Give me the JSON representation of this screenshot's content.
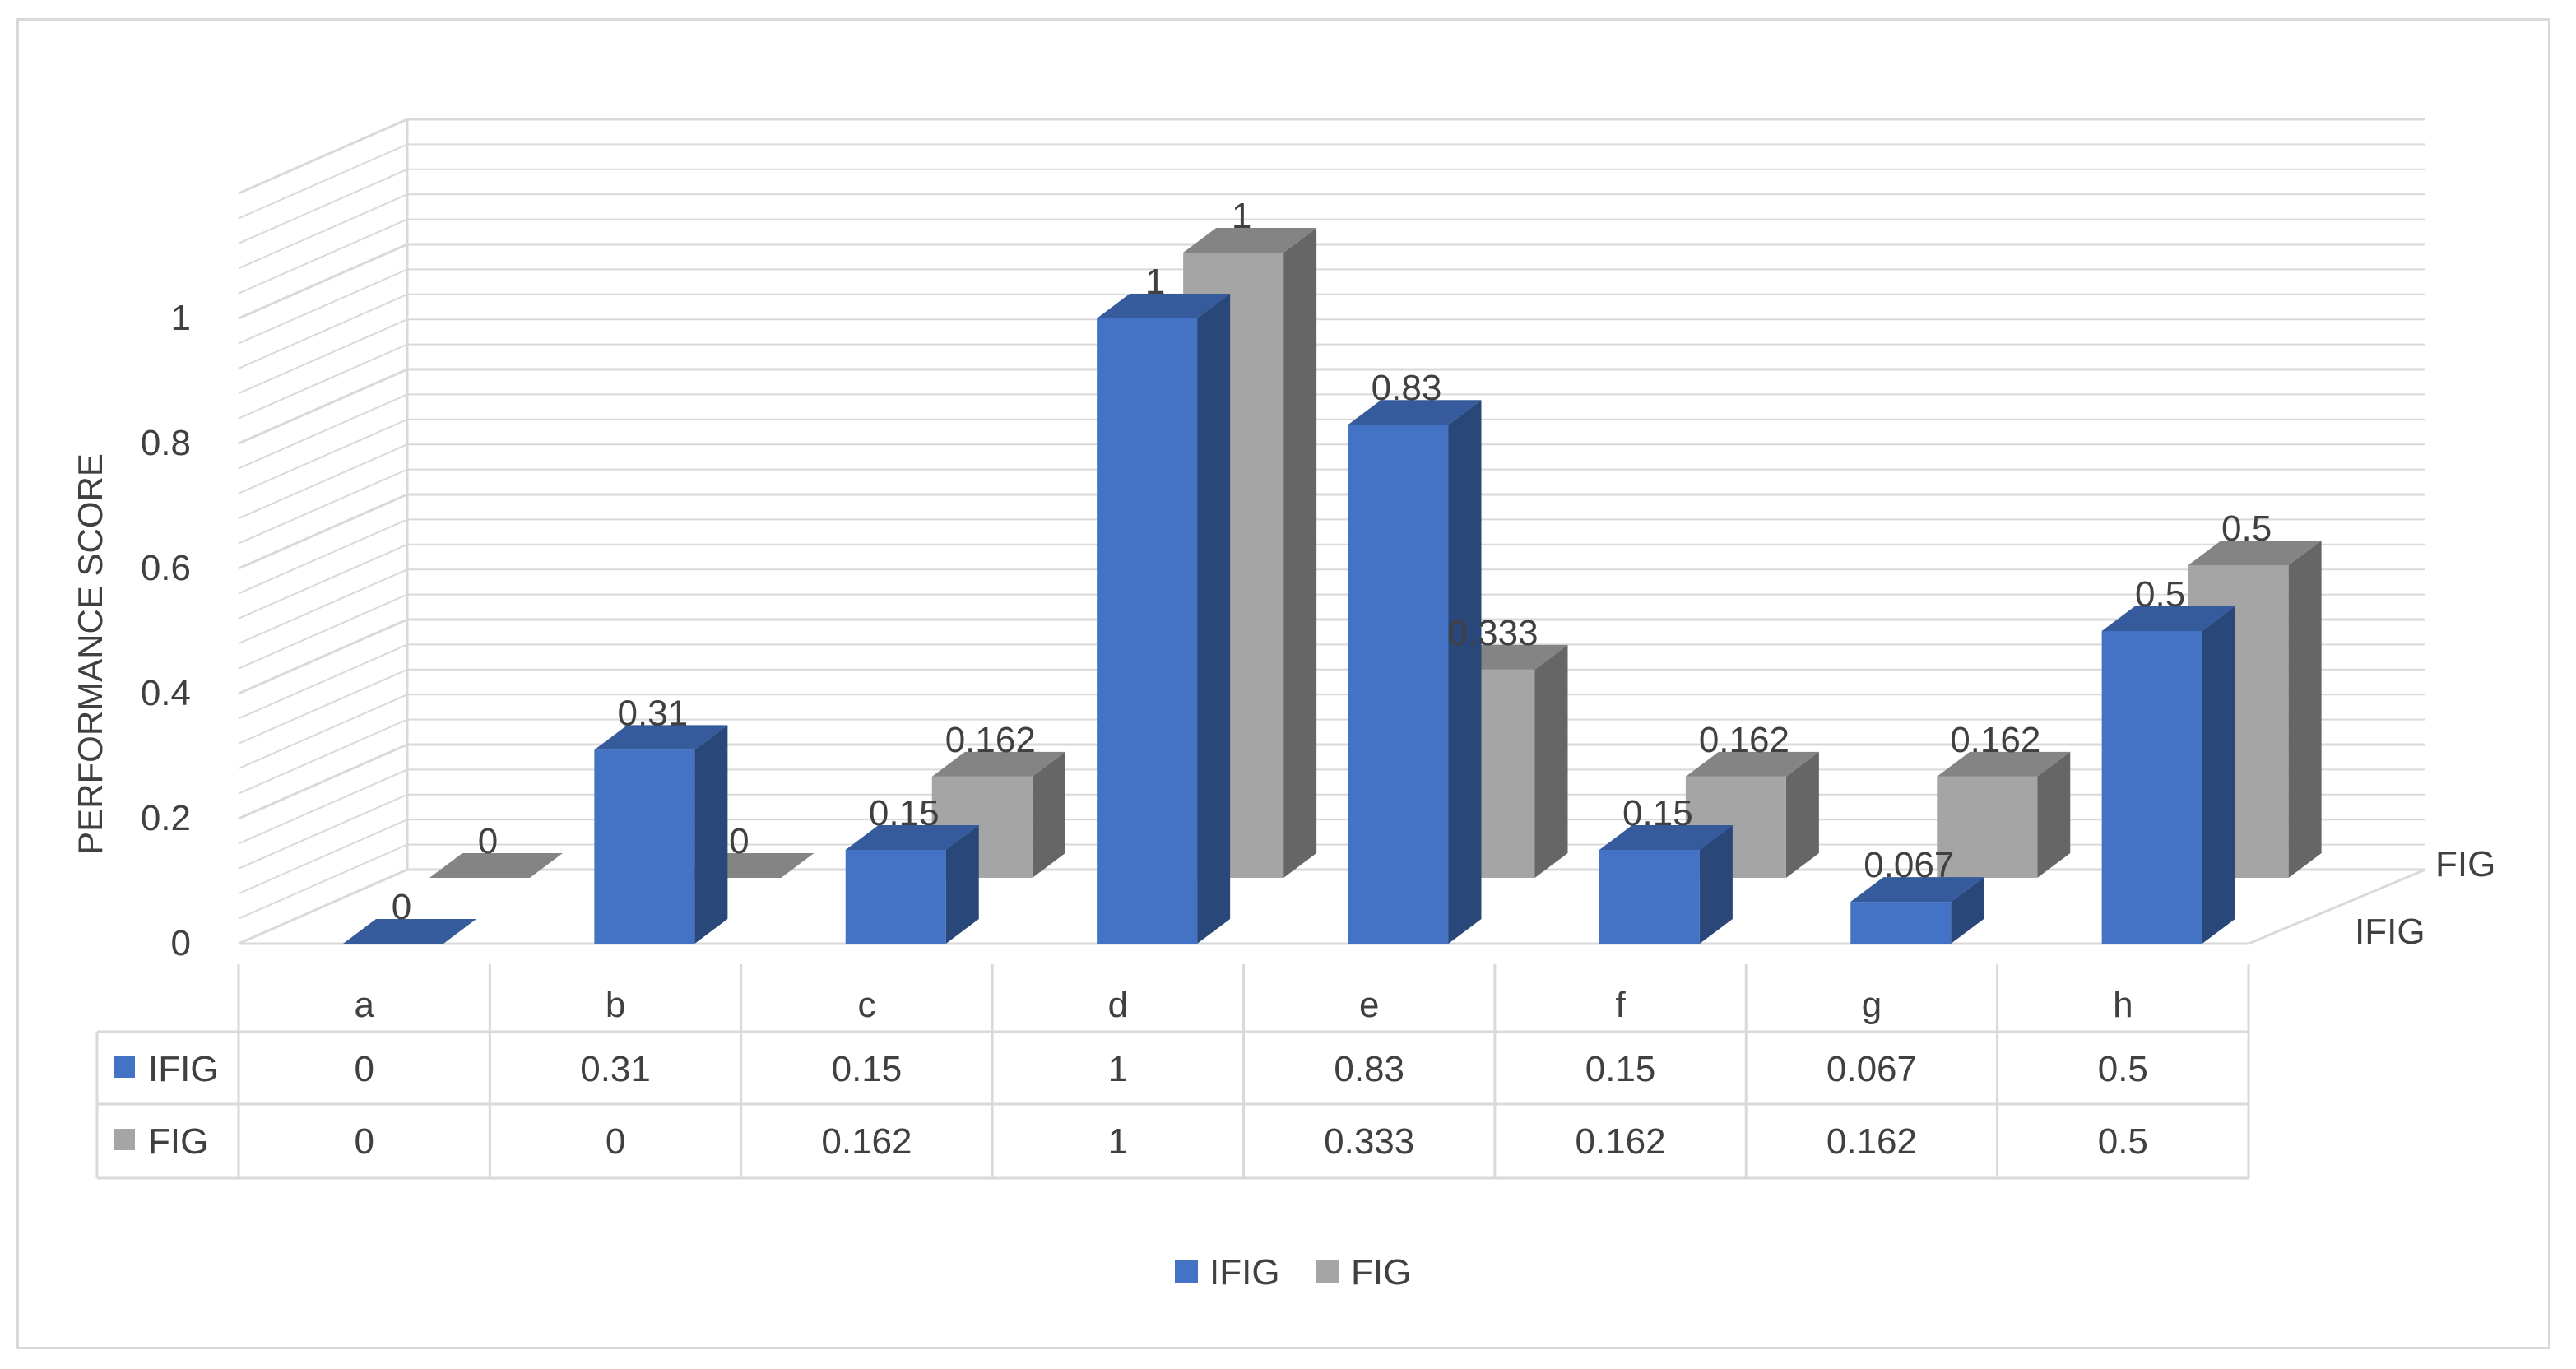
{
  "chart_data": {
    "type": "bar",
    "title": "",
    "ylabel": "PERFORMANCE SCORE",
    "xlabel": "",
    "categories": [
      "a",
      "b",
      "c",
      "d",
      "e",
      "f",
      "g",
      "h"
    ],
    "series": [
      {
        "name": "IFIG",
        "values": [
          0,
          0.31,
          0.15,
          1,
          0.83,
          0.15,
          0.067,
          0.5
        ],
        "labels": [
          "0",
          "0.31",
          "0.15",
          "1",
          "0.83",
          "0.15",
          "0.067",
          "0.5"
        ]
      },
      {
        "name": "FIG",
        "values": [
          0,
          0,
          0.162,
          1,
          0.333,
          0.162,
          0.162,
          0.5
        ],
        "labels": [
          "0",
          "0",
          "0.162",
          "1",
          "0.333",
          "0.162",
          "0.162",
          "0.5"
        ]
      }
    ],
    "y_ticks": [
      "0",
      "0.2",
      "0.4",
      "0.6",
      "0.8",
      "1"
    ],
    "ylim": [
      0,
      1.2
    ],
    "depth_axis_labels": [
      "IFIG",
      "FIG"
    ],
    "grid": true,
    "style": "3d-column",
    "legend_position": "bottom",
    "data_table": true
  },
  "colors": {
    "IFIG": "#4472c4",
    "FIG": "#a5a5a5",
    "grid": "#d9d9d9",
    "text": "#404040"
  },
  "legend": {
    "items": [
      "IFIG",
      "FIG"
    ]
  }
}
